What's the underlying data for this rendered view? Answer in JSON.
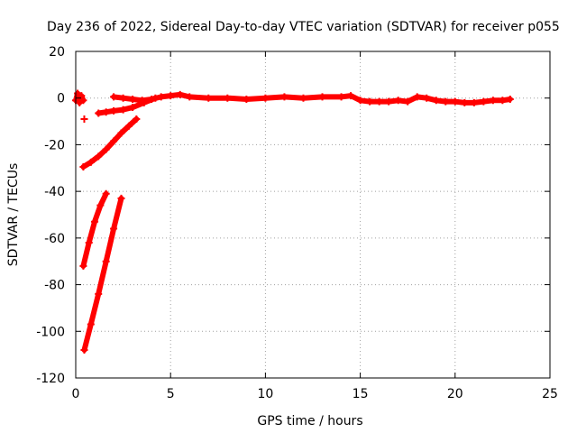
{
  "chart_data": {
    "type": "scatter",
    "title": "Day 236 of 2022, Sidereal Day-to-day VTEC variation (SDTVAR) for receiver p055",
    "xlabel": "GPS time / hours",
    "ylabel": "SDTVAR / TECUs",
    "xlim": [
      0,
      25
    ],
    "ylim": [
      -120,
      20
    ],
    "xticks": [
      0,
      5,
      10,
      15,
      20,
      25
    ],
    "yticks": [
      -120,
      -100,
      -80,
      -60,
      -40,
      -20,
      0,
      20
    ],
    "grid": true,
    "marker_color": "#ff0000",
    "series": [
      {
        "name": "segment-main",
        "x": [
          2.0,
          2.5,
          3.0,
          3.5,
          4.0,
          4.5,
          5.0,
          5.5,
          6.0,
          7.0,
          8.0,
          9.0,
          10.0,
          11.0,
          12.0,
          13.0,
          14.0,
          14.5,
          15.0,
          15.5,
          16.0,
          16.5,
          17.0,
          17.5,
          18.0,
          18.5,
          19.0,
          19.5,
          20.0,
          20.5,
          21.0,
          21.5,
          22.0,
          22.5,
          22.9
        ],
        "y": [
          0.5,
          0.0,
          -0.5,
          -1.0,
          -0.5,
          0.5,
          1.0,
          1.5,
          0.5,
          0.0,
          0.0,
          -0.5,
          0.0,
          0.5,
          0.0,
          0.5,
          0.5,
          1.0,
          -1.0,
          -1.5,
          -1.5,
          -1.5,
          -1.0,
          -1.5,
          0.5,
          0.0,
          -1.0,
          -1.5,
          -1.5,
          -2.0,
          -2.0,
          -1.5,
          -1.0,
          -1.0,
          -0.5
        ]
      },
      {
        "name": "segment-start",
        "x": [
          0.0,
          0.1,
          0.2,
          0.3,
          0.4
        ],
        "y": [
          -1.0,
          2.0,
          -2.0,
          1.0,
          -1.0
        ]
      },
      {
        "name": "segment-point",
        "x": [
          0.45
        ],
        "y": [
          -9.0
        ]
      },
      {
        "name": "segment-rise-a",
        "x": [
          1.2,
          1.6,
          2.0,
          2.5,
          3.0,
          3.6,
          4.2
        ],
        "y": [
          -6.5,
          -6.0,
          -5.5,
          -5.0,
          -4.0,
          -2.0,
          0.0
        ]
      },
      {
        "name": "segment-rise-b",
        "x": [
          0.4,
          0.8,
          1.2,
          1.6,
          2.0,
          2.4,
          2.8,
          3.2
        ],
        "y": [
          -29.5,
          -27.5,
          -25.0,
          -22.0,
          -18.5,
          -15.0,
          -12.0,
          -9.0
        ]
      },
      {
        "name": "segment-rise-c",
        "x": [
          0.4,
          0.7,
          1.0,
          1.3,
          1.6
        ],
        "y": [
          -72.0,
          -62.0,
          -53.0,
          -46.0,
          -41.0
        ]
      },
      {
        "name": "segment-rise-d",
        "x": [
          0.45,
          0.8,
          1.2,
          1.6,
          2.0,
          2.4
        ],
        "y": [
          -108.0,
          -97.0,
          -84.0,
          -70.0,
          -56.0,
          -43.0
        ]
      }
    ]
  }
}
